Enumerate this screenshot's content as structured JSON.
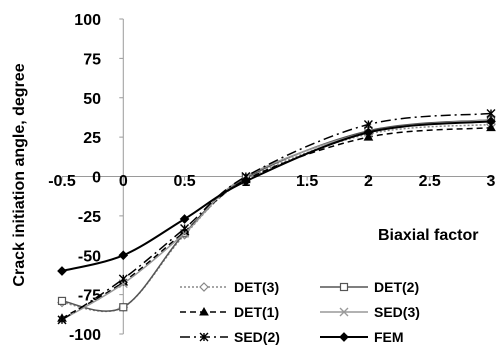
{
  "chart_data": {
    "type": "line",
    "xlabel": "Biaxial factor",
    "ylabel": "Crack initiation angle, degree",
    "xlim": [
      -0.5,
      3
    ],
    "ylim": [
      -100,
      100
    ],
    "x_ticks": [
      "-0.5",
      "0",
      "0.5",
      "1",
      "1.5",
      "2",
      "2.5",
      "3"
    ],
    "y_ticks": [
      "100",
      "75",
      "50",
      "25",
      "0",
      "-25",
      "-50",
      "-75",
      "-100"
    ],
    "grid": false,
    "legend_position": "bottom-center",
    "series": [
      {
        "name": "DET(3)",
        "color": "#888888",
        "dash": "2,2",
        "marker": "diamond-open",
        "x": [
          -0.5,
          0,
          0.5,
          1,
          2,
          3
        ],
        "y": [
          -80,
          -83,
          -37,
          -2,
          27,
          33
        ]
      },
      {
        "name": "DET(2)",
        "color": "#555555",
        "dash": "",
        "marker": "square-open",
        "x": [
          -0.5,
          0,
          0.5,
          1,
          2,
          3
        ],
        "y": [
          -79,
          -83,
          -36,
          -1,
          29,
          36
        ]
      },
      {
        "name": "DET(1)",
        "color": "#000000",
        "dash": "6,4",
        "marker": "triangle",
        "x": [
          -0.5,
          0,
          0.5,
          1,
          2,
          3
        ],
        "y": [
          -90,
          -67,
          -35,
          -2,
          25,
          31
        ]
      },
      {
        "name": "SED(3)",
        "color": "#999999",
        "dash": "",
        "marker": "cross",
        "x": [
          -0.5,
          0,
          0.5,
          1,
          2,
          3
        ],
        "y": [
          -91,
          -68,
          -36,
          0,
          28,
          36
        ]
      },
      {
        "name": "SED(2)",
        "color": "#000000",
        "dash": "10,4,2,4",
        "marker": "star",
        "x": [
          -0.5,
          0,
          0.5,
          1,
          2,
          3
        ],
        "y": [
          -91,
          -65,
          -33,
          0,
          33,
          40
        ]
      },
      {
        "name": "FEM",
        "color": "#000000",
        "dash": "",
        "marker": "diamond",
        "x": [
          -0.5,
          0,
          0.5,
          1,
          2,
          3
        ],
        "y": [
          -60,
          -50,
          -27,
          -3,
          28,
          35
        ]
      }
    ]
  }
}
